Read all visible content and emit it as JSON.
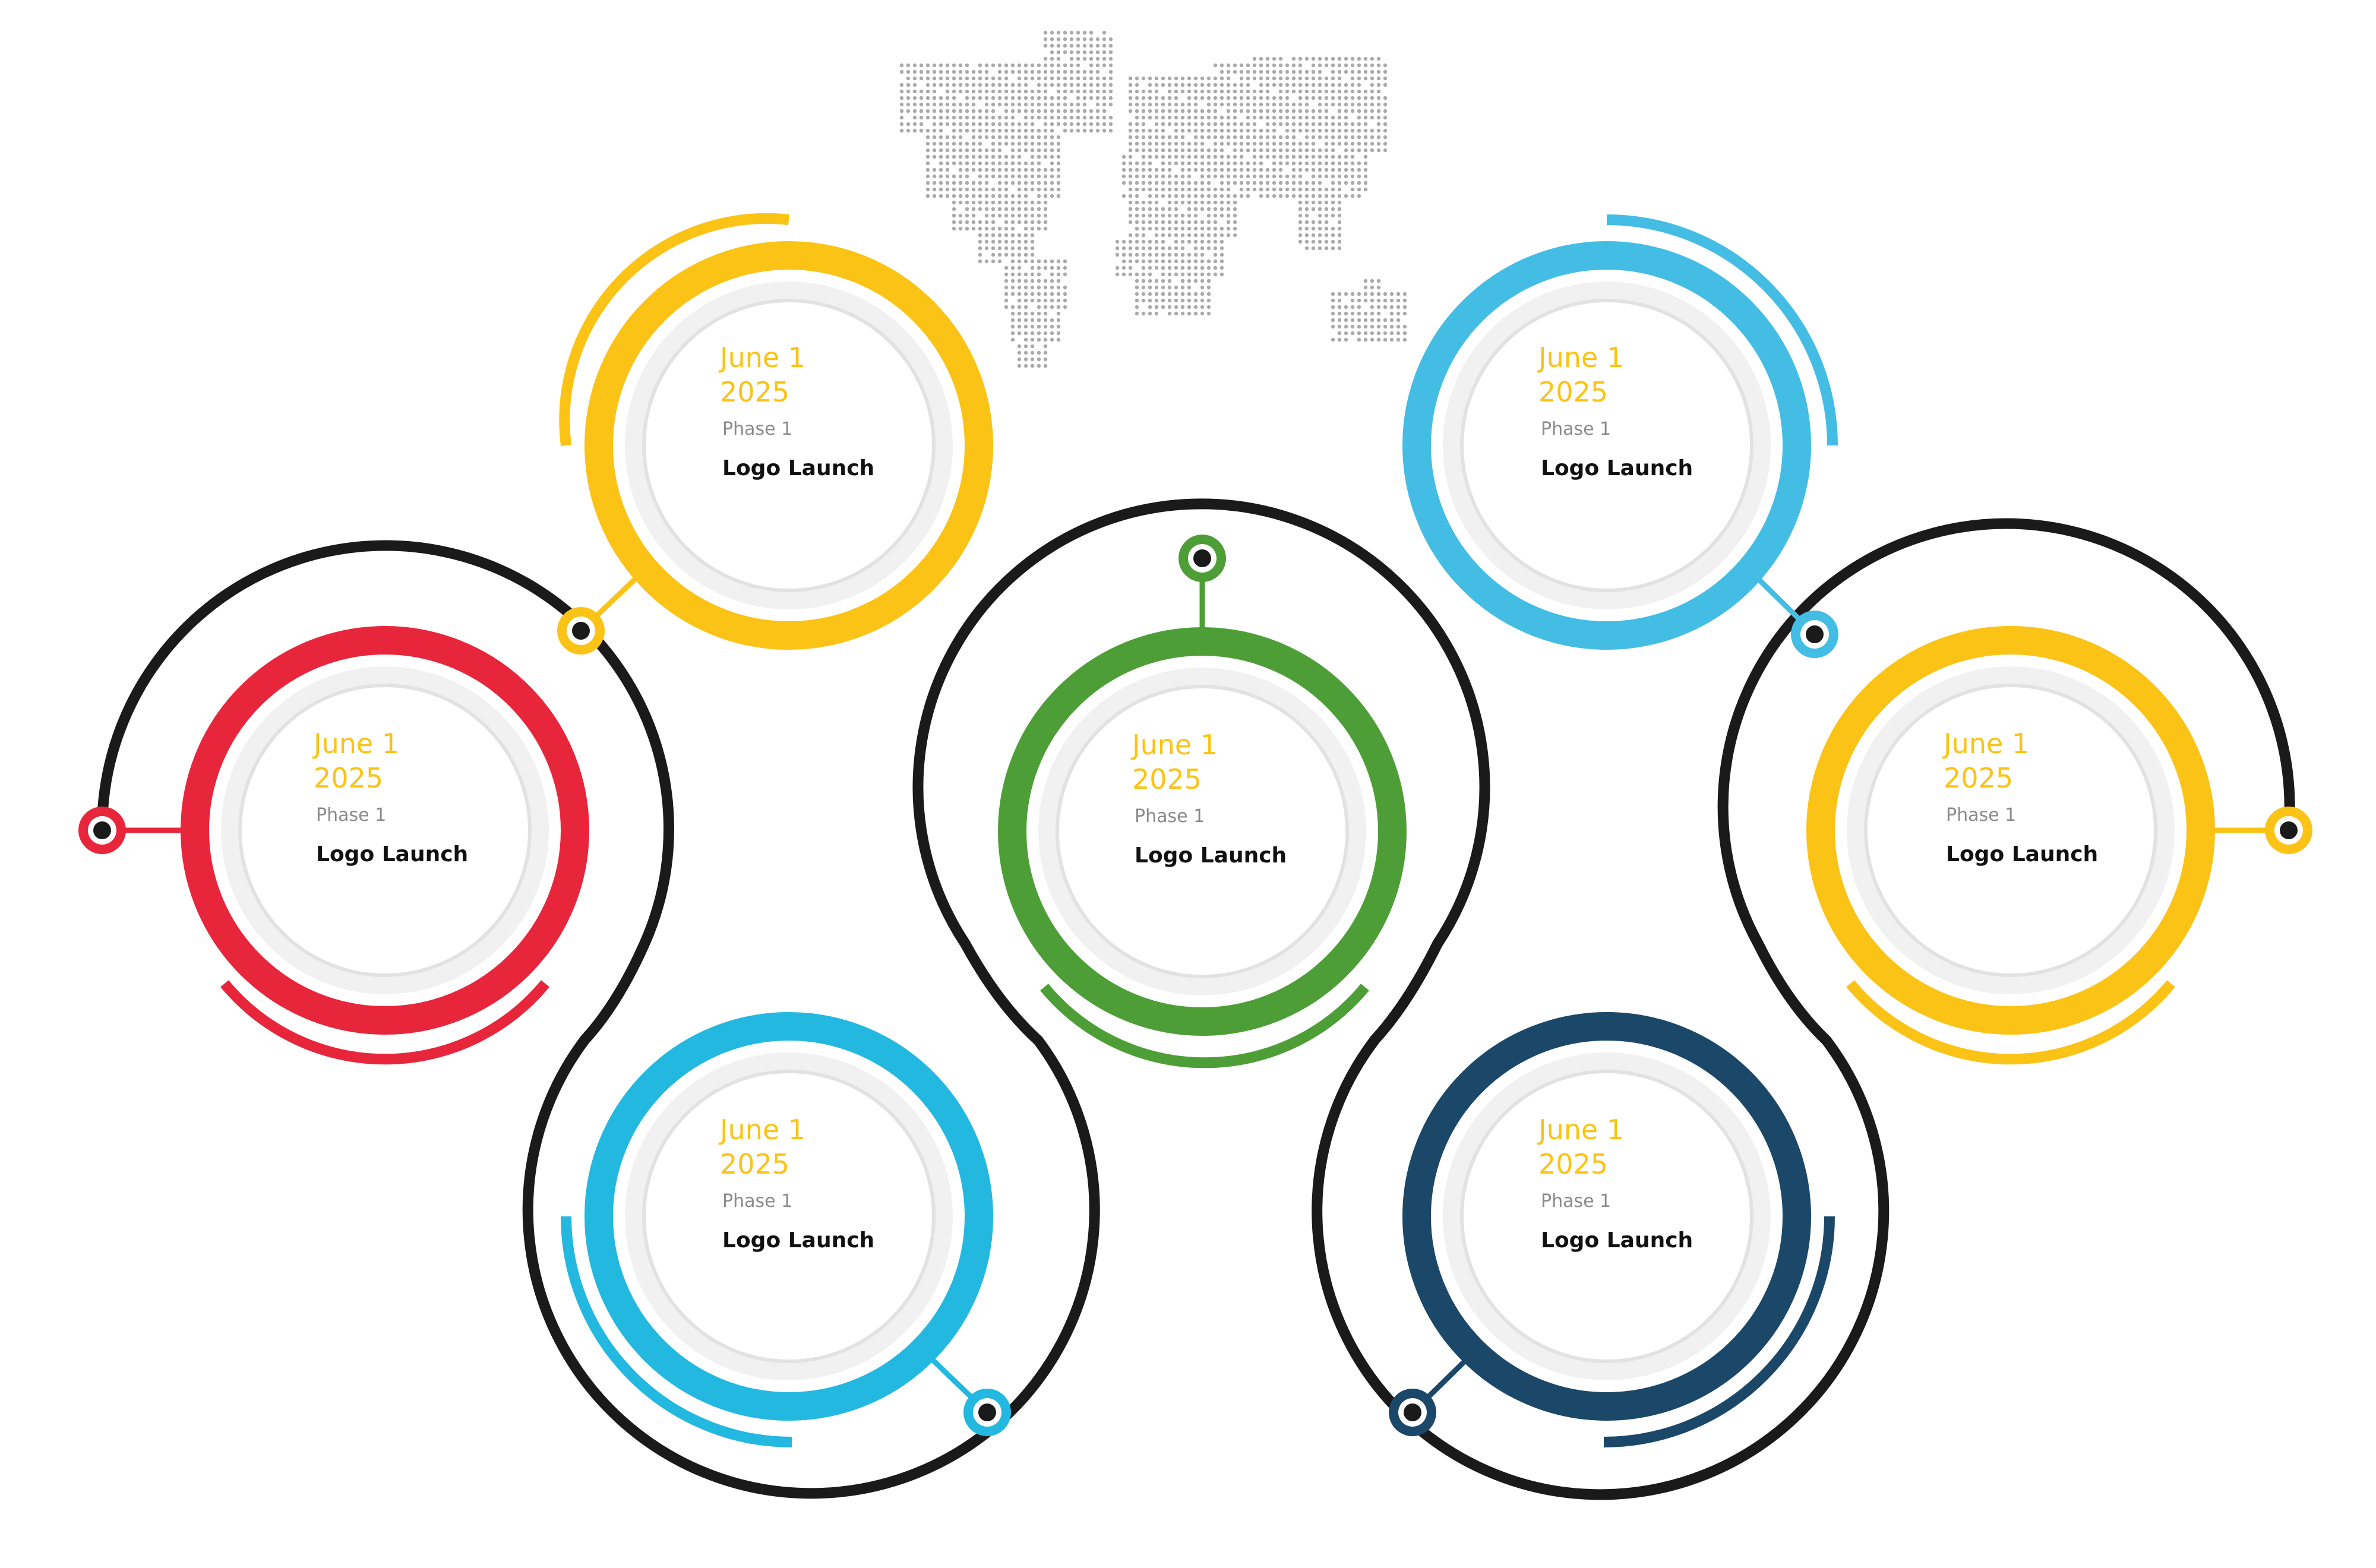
{
  "colors": {
    "path": "#1a1a1a",
    "date_text": "#fbc315",
    "inner_fill": "#f1f1f1",
    "inner_ring": "#e2e2e2"
  },
  "milestones": [
    {
      "id": "m1",
      "color": "#e8263b",
      "date_line1": "June 1",
      "date_line2": "2025",
      "phase": "Phase 1",
      "title": "Logo Launch"
    },
    {
      "id": "m2",
      "color": "#fbc315",
      "date_line1": "June 1",
      "date_line2": "2025",
      "phase": "Phase 1",
      "title": "Logo Launch"
    },
    {
      "id": "m3",
      "color": "#22b8e0",
      "date_line1": "June 1",
      "date_line2": "2025",
      "phase": "Phase 1",
      "title": "Logo Launch"
    },
    {
      "id": "m4",
      "color": "#4e9e38",
      "date_line1": "June 1",
      "date_line2": "2025",
      "phase": "Phase 1",
      "title": "Logo Launch"
    },
    {
      "id": "m5",
      "color": "#44bde4",
      "date_line1": "June 1",
      "date_line2": "2025",
      "phase": "Phase 1",
      "title": "Logo Launch"
    },
    {
      "id": "m6",
      "color": "#1b4769",
      "date_line1": "June 1",
      "date_line2": "2025",
      "phase": "Phase 1",
      "title": "Logo Launch"
    },
    {
      "id": "m7",
      "color": "#fbc315",
      "date_line1": "June 1",
      "date_line2": "2025",
      "phase": "Phase 1",
      "title": "Logo Launch"
    }
  ],
  "decoration": {
    "world_map": "dotted-world-map",
    "world_map_color": "#aaaaaa"
  }
}
